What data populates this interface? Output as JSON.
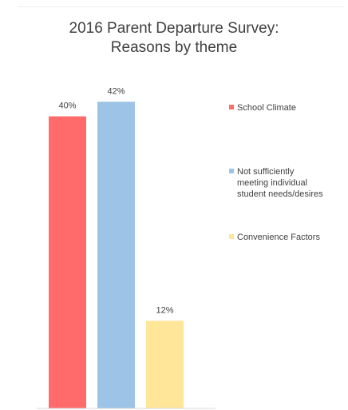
{
  "chart_data": {
    "type": "bar",
    "title": "2016 Parent Departure Survey:",
    "subtitle": "Reasons by theme",
    "categories": [
      "School Climate",
      "Not sufficiently meeting individual student needs/desires",
      "Convenience Factors"
    ],
    "values": [
      40,
      42,
      12
    ],
    "data_labels": [
      "40%",
      "42%",
      "12%"
    ],
    "colors": [
      "#ff6b6b",
      "#9dc3e6",
      "#ffe699"
    ],
    "ylim": [
      0,
      44
    ],
    "grid": false,
    "legend_placement": "right",
    "legend": [
      {
        "label": "School Climate",
        "color": "#ff6b6b"
      },
      {
        "label": "Not sufficiently meeting individual student needs/desires",
        "color": "#9dc3e6"
      },
      {
        "label": "Convenience Factors",
        "color": "#ffe699"
      }
    ]
  }
}
